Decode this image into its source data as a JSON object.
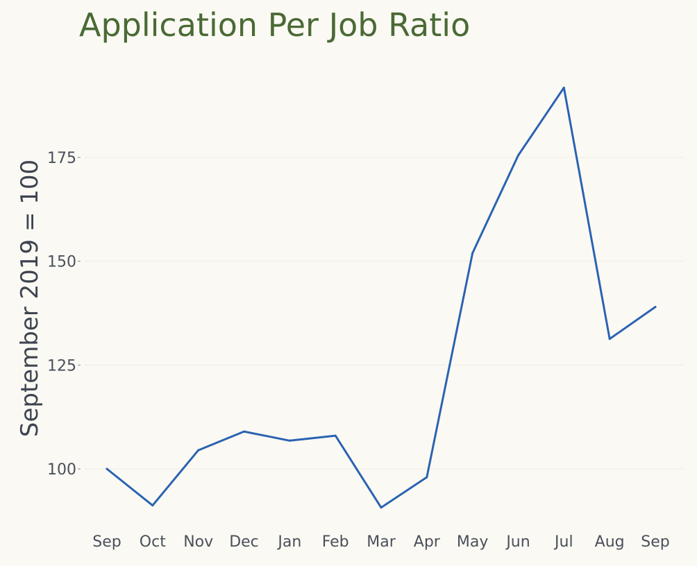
{
  "chart_data": {
    "type": "line",
    "title": "Application Per Job Ratio",
    "xlabel": "",
    "ylabel": "September 2019 = 100",
    "categories": [
      "Sep",
      "Oct",
      "Nov",
      "Dec",
      "Jan",
      "Feb",
      "Mar",
      "Apr",
      "May",
      "Jun",
      "Jul",
      "Aug",
      "Sep"
    ],
    "series": [
      {
        "values": [
          100,
          91.2,
          104.5,
          109,
          106.8,
          108,
          90.7,
          98,
          152,
          175.5,
          191.8,
          131.3,
          139
        ]
      }
    ],
    "yticks": [
      100,
      125,
      150,
      175
    ],
    "ytick_labels": [
      "100",
      "125",
      "150",
      "175"
    ],
    "ylim": [
      86,
      201
    ],
    "grid": true,
    "legend": "none",
    "colors": {
      "line": "#2a63b1",
      "title": "#4a6a35",
      "background": "#fbf9f4"
    }
  }
}
